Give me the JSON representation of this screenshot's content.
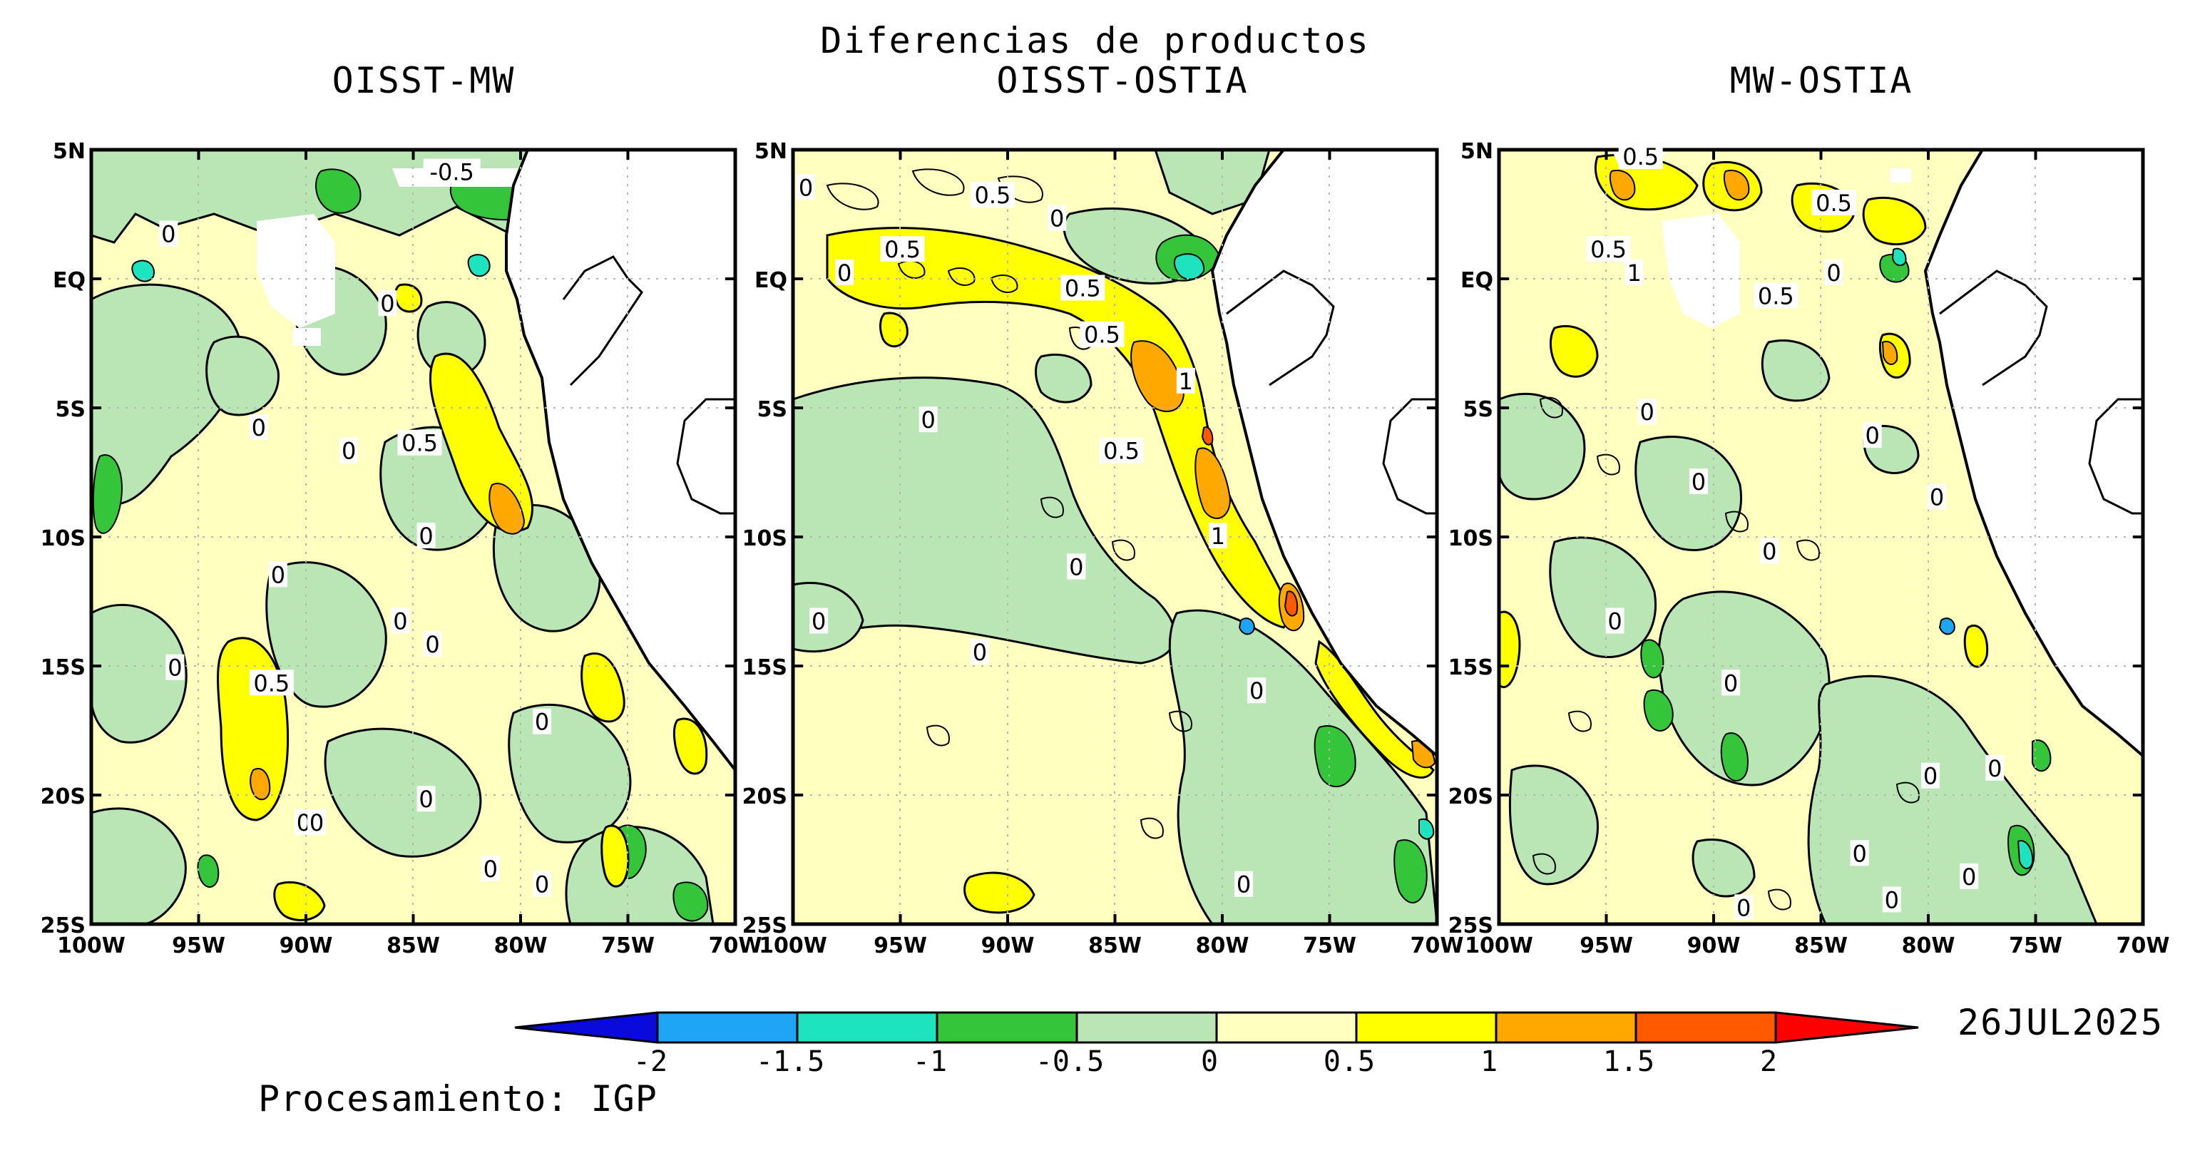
{
  "title": "Diferencias de productos",
  "panels": [
    {
      "title": "OISST-MW"
    },
    {
      "title": "OISST-OSTIA"
    },
    {
      "title": "MW-OSTIA"
    }
  ],
  "lat_labels": [
    "5N",
    "EQ",
    "5S",
    "10S",
    "15S",
    "20S",
    "25S"
  ],
  "lon_labels": [
    "100W",
    "95W",
    "90W",
    "85W",
    "80W",
    "75W",
    "70W"
  ],
  "contour_labels": {
    "p1": [
      "-0.5",
      "0",
      "0",
      "0",
      "0",
      "0.5",
      "0",
      "0",
      "0",
      "0",
      "0",
      "0",
      "0.5",
      "0",
      "0",
      "0",
      "0",
      "0"
    ],
    "p2": [
      "0",
      "0.5",
      "0.5",
      "0",
      "0",
      "0.5",
      "0.5",
      "1",
      "0",
      "0.5",
      "1",
      "0",
      "0",
      "0",
      "0",
      "0",
      "0",
      "0"
    ],
    "p3": [
      "0.5",
      "0.5",
      "0.5",
      "1",
      "0",
      "0.5",
      "0",
      "0",
      "0",
      "0",
      "0",
      "0",
      "0",
      "0",
      "0",
      "0",
      "0",
      "0",
      "0"
    ]
  },
  "colorbar": {
    "ticks": [
      "-2",
      "-1.5",
      "-1",
      "-0.5",
      "0",
      "0.5",
      "1",
      "1.5",
      "2"
    ],
    "colors": [
      "#0a0adc",
      "#1fa5f5",
      "#1ee3bf",
      "#35c53a",
      "#b9e6b4",
      "#ffffc0",
      "#ffff00",
      "#ffa800",
      "#ff5a00",
      "#ff0000"
    ]
  },
  "colors": {
    "land": "#ffffff",
    "missing": "#ffffff",
    "grid": "#b4b4b4"
  },
  "date": "26JUL2025",
  "credit": "Procesamiento: IGP"
}
